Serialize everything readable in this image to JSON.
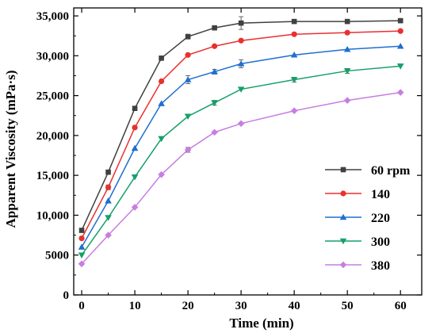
{
  "chart_data": {
    "type": "line",
    "xlabel": "Time (min)",
    "ylabel": "Apparent Viscosity (mPa·s)",
    "xlim": [
      -1.5,
      64
    ],
    "ylim": [
      0,
      36000
    ],
    "xticks": [
      0,
      10,
      20,
      30,
      40,
      50,
      60
    ],
    "yticks": [
      0,
      5000,
      10000,
      15000,
      20000,
      25000,
      30000,
      35000
    ],
    "ytick_labels": [
      "0",
      "5000",
      "10,000",
      "15,000",
      "20,000",
      "25,000",
      "30,000",
      "35,000"
    ],
    "x": [
      0,
      5,
      10,
      15,
      20,
      25,
      30,
      40,
      50,
      60
    ],
    "legend_position": "right",
    "series": [
      {
        "name": "60 rpm",
        "color": "#404040",
        "marker": "square",
        "values": [
          8100,
          15400,
          23400,
          29700,
          32400,
          33500,
          34100,
          34300,
          34300,
          34400
        ],
        "errors": [
          0,
          0,
          0,
          0,
          300,
          0,
          800,
          200,
          0,
          0
        ]
      },
      {
        "name": "140",
        "color": "#e8312f",
        "marker": "circle",
        "values": [
          7100,
          13500,
          21000,
          26800,
          30100,
          31200,
          31900,
          32700,
          32900,
          33100
        ],
        "errors": [
          0,
          300,
          0,
          0,
          0,
          0,
          0,
          0,
          0,
          0
        ]
      },
      {
        "name": "220",
        "color": "#1f6fd0",
        "marker": "triangle-up",
        "values": [
          6000,
          11800,
          18400,
          24000,
          27000,
          28000,
          29000,
          30100,
          30800,
          31200
        ],
        "errors": [
          0,
          0,
          0,
          0,
          500,
          300,
          500,
          0,
          0,
          0
        ]
      },
      {
        "name": "300",
        "color": "#16a06a",
        "marker": "triangle-down",
        "values": [
          5000,
          9700,
          14800,
          19600,
          22400,
          24100,
          25800,
          27000,
          28100,
          28700
        ],
        "errors": [
          0,
          0,
          0,
          0,
          0,
          300,
          0,
          300,
          300,
          0
        ]
      },
      {
        "name": "380",
        "color": "#c77ee0",
        "marker": "diamond",
        "values": [
          3900,
          7500,
          11000,
          15100,
          18200,
          20400,
          21500,
          23100,
          24400,
          25400
        ],
        "errors": [
          0,
          0,
          0,
          0,
          300,
          0,
          0,
          0,
          0,
          0
        ]
      }
    ]
  }
}
